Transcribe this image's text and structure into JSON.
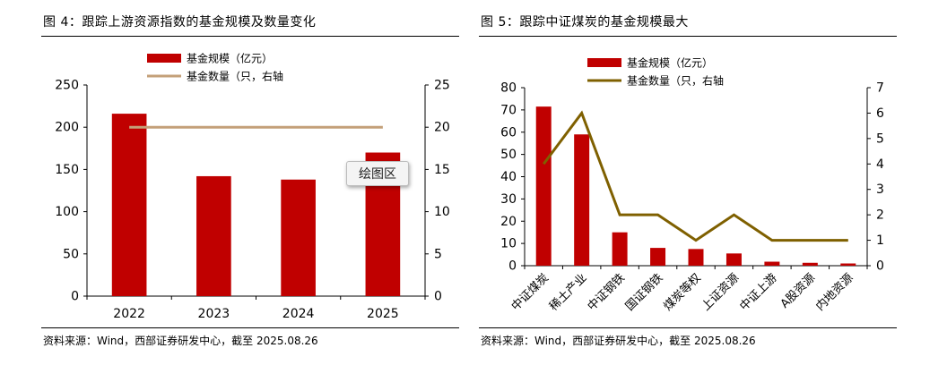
{
  "left_panel": {
    "title": "图 4：跟踪上游资源指数的基金规模及数量变化",
    "source": "资料来源：Wind，西部证券研发中心，截至 2025.08.26",
    "tooltip": "绘图区"
  },
  "right_panel": {
    "title": "图 5：跟踪中证煤炭的基金规模最大",
    "source": "资料来源：Wind，西部证券研发中心，截至 2025.08.26"
  },
  "colors": {
    "bar": "#c00000",
    "left_line": "#c4a079",
    "right_line": "#7f6000"
  },
  "chart_data": [
    {
      "type": "bar",
      "subtype": "bar+line",
      "title": "跟踪上游资源指数的基金规模及数量变化",
      "categories": [
        "2022",
        "2023",
        "2024",
        "2025"
      ],
      "series": [
        {
          "name": "基金规模（亿元）",
          "type": "bar",
          "axis": "left",
          "values": [
            216,
            142,
            138,
            170
          ]
        },
        {
          "name": "基金数量（只，右轴",
          "type": "line",
          "axis": "right",
          "values": [
            20,
            20,
            20,
            20
          ]
        }
      ],
      "ylim": [
        0,
        250
      ],
      "yticks": [
        "0",
        "50",
        "100",
        "150",
        "200",
        "250"
      ],
      "y2lim": [
        0,
        25
      ],
      "y2ticks": [
        "0",
        "5",
        "10",
        "15",
        "20",
        "25"
      ],
      "grid": false,
      "legend": "top-left"
    },
    {
      "type": "bar",
      "subtype": "bar+line",
      "title": "跟踪中证煤炭的基金规模最大",
      "categories": [
        "中证煤炭",
        "稀土产业",
        "中证钢铁",
        "国证钢铁",
        "煤炭等权",
        "上证资源",
        "中证上游",
        "A股资源",
        "内地资源"
      ],
      "series": [
        {
          "name": "基金规模（亿元）",
          "type": "bar",
          "axis": "left",
          "values": [
            71.5,
            59,
            15,
            8,
            7.5,
            5.5,
            1.8,
            1.3,
            1
          ]
        },
        {
          "name": "基金数量（只，右轴",
          "type": "line",
          "axis": "right",
          "values": [
            4,
            6,
            2,
            2,
            1,
            2,
            1,
            1,
            1
          ]
        }
      ],
      "ylim": [
        0,
        80
      ],
      "yticks": [
        "0",
        "10",
        "20",
        "30",
        "40",
        "50",
        "60",
        "70",
        "80"
      ],
      "y2lim": [
        0,
        7
      ],
      "y2ticks": [
        "0",
        "1",
        "2",
        "3",
        "4",
        "5",
        "6",
        "7"
      ],
      "grid": false,
      "legend": "top-left"
    }
  ]
}
